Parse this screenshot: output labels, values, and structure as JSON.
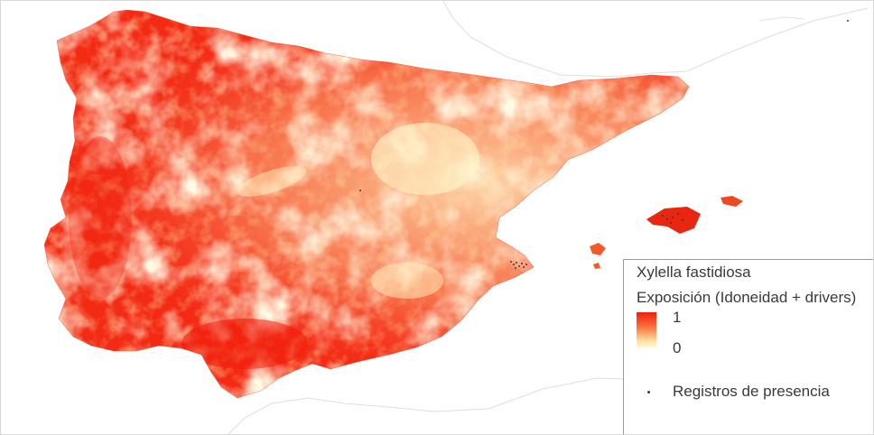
{
  "legend": {
    "species": "Xylella fastidiosa",
    "variable": "Exposición (Idoneidad + drivers)",
    "max_label": "1",
    "min_label": "0",
    "presence_label": "Registros de presencia"
  },
  "colors": {
    "high": "#f01e0c",
    "mid": "#f9703d",
    "low": "#fffbe6",
    "presence_marker": "#3a3a3a",
    "background": "#ffffff",
    "coastline": "#d9d9d9"
  },
  "scale": {
    "min": 0,
    "max": 1
  }
}
